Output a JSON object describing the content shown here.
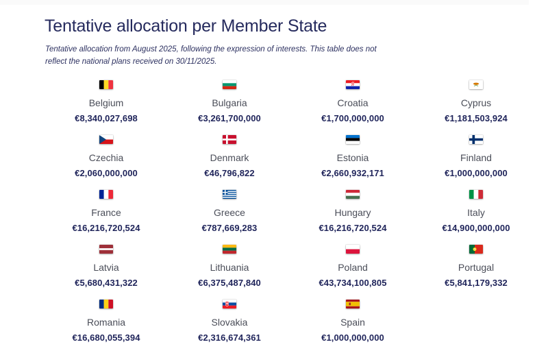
{
  "page": {
    "title": "Tentative allocation per Member State",
    "subtitle": "Tentative allocation from August 2025, following the expression of interests. This table does not reflect the national plans received on 30/11/2025."
  },
  "colors": {
    "title_navy": "#252a5d",
    "amount_navy": "#20255b",
    "name_gray": "#4a4d58",
    "background": "#ffffff"
  },
  "members": [
    {
      "name": "Belgium",
      "amount": "€8,340,027,698",
      "flag": {
        "icon": "belgium-flag-icon",
        "kind": "v",
        "colors": [
          "#000000",
          "#FDDA24",
          "#EF3340"
        ]
      }
    },
    {
      "name": "Bulgaria",
      "amount": "€3,261,700,000",
      "flag": {
        "icon": "bulgaria-flag-icon",
        "kind": "h",
        "colors": [
          "#FFFFFF",
          "#00966E",
          "#D62612"
        ]
      }
    },
    {
      "name": "Croatia",
      "amount": "€1,700,000,000",
      "flag": {
        "icon": "croatia-flag-icon",
        "kind": "croatia",
        "colors": [
          "#ED1C24",
          "#FFFFFF",
          "#0F23AA"
        ]
      }
    },
    {
      "name": "Cyprus",
      "amount": "€1,181,503,924",
      "flag": {
        "icon": "cyprus-flag-icon",
        "kind": "cyprus",
        "colors": [
          "#FFFFFF",
          "#D57800",
          "#4E8B31"
        ]
      }
    },
    {
      "name": "Czechia",
      "amount": "€2,060,000,000",
      "flag": {
        "icon": "czechia-flag-icon",
        "kind": "czech",
        "colors": [
          "#FFFFFF",
          "#D7141A",
          "#11457E"
        ]
      }
    },
    {
      "name": "Denmark",
      "amount": "€46,796,822",
      "flag": {
        "icon": "denmark-flag-icon",
        "kind": "nordic",
        "bg": "#C8102E",
        "cross": "#FFFFFF",
        "crossW": 8
      }
    },
    {
      "name": "Estonia",
      "amount": "€2,660,932,171",
      "flag": {
        "icon": "estonia-flag-icon",
        "kind": "h",
        "colors": [
          "#0072CE",
          "#000000",
          "#FFFFFF"
        ]
      }
    },
    {
      "name": "Finland",
      "amount": "€1,000,000,000",
      "flag": {
        "icon": "finland-flag-icon",
        "kind": "nordic",
        "bg": "#FFFFFF",
        "cross": "#002F6C",
        "crossW": 11
      }
    },
    {
      "name": "France",
      "amount": "€16,216,720,524",
      "flag": {
        "icon": "france-flag-icon",
        "kind": "v",
        "colors": [
          "#002395",
          "#FFFFFF",
          "#ED2939"
        ]
      }
    },
    {
      "name": "Greece",
      "amount": "€787,669,283",
      "flag": {
        "icon": "greece-flag-icon",
        "kind": "greece",
        "colors": [
          "#004C98",
          "#FFFFFF"
        ]
      }
    },
    {
      "name": "Hungary",
      "amount": "€16,216,720,524",
      "flag": {
        "icon": "hungary-flag-icon",
        "kind": "h",
        "colors": [
          "#CE2939",
          "#FFFFFF",
          "#477050"
        ]
      }
    },
    {
      "name": "Italy",
      "amount": "€14,900,000,000",
      "flag": {
        "icon": "italy-flag-icon",
        "kind": "v",
        "colors": [
          "#009246",
          "#FFFFFF",
          "#CE2B37"
        ]
      }
    },
    {
      "name": "Latvia",
      "amount": "€5,680,431,322",
      "flag": {
        "icon": "latvia-flag-icon",
        "kind": "h",
        "colors": [
          "#9E3039",
          "#FFFFFF",
          "#9E3039"
        ],
        "weights": [
          2,
          1,
          2
        ]
      }
    },
    {
      "name": "Lithuania",
      "amount": "€6,375,487,840",
      "flag": {
        "icon": "lithuania-flag-icon",
        "kind": "h",
        "colors": [
          "#FDB913",
          "#006A44",
          "#C1272D"
        ]
      }
    },
    {
      "name": "Poland",
      "amount": "€43,734,100,805",
      "flag": {
        "icon": "poland-flag-icon",
        "kind": "h",
        "colors": [
          "#FFFFFF",
          "#DC143C"
        ]
      }
    },
    {
      "name": "Portugal",
      "amount": "€5,841,179,332",
      "flag": {
        "icon": "portugal-flag-icon",
        "kind": "portugal",
        "colors": [
          "#046A38",
          "#DA291C",
          "#FFE900"
        ]
      }
    },
    {
      "name": "Romania",
      "amount": "€16,680,055,394",
      "flag": {
        "icon": "romania-flag-icon",
        "kind": "v",
        "colors": [
          "#002B7F",
          "#FCD116",
          "#CE1126"
        ]
      }
    },
    {
      "name": "Slovakia",
      "amount": "€2,316,674,361",
      "flag": {
        "icon": "slovakia-flag-icon",
        "kind": "slovakia",
        "colors": [
          "#FFFFFF",
          "#0B4EA2",
          "#EE1C25"
        ]
      }
    },
    {
      "name": "Spain",
      "amount": "€1,000,000,000",
      "flag": {
        "icon": "spain-flag-icon",
        "kind": "spain",
        "colors": [
          "#AA151B",
          "#F1BF00"
        ]
      }
    }
  ]
}
